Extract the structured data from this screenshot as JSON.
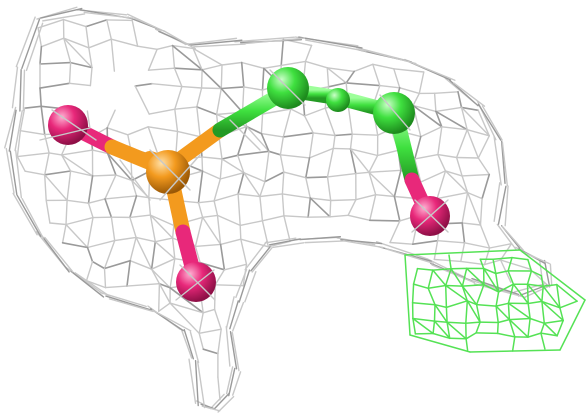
{
  "scene": {
    "background": "#ffffff",
    "colors": {
      "grey_mesh": "#c8c8c8",
      "grey_mesh_dark": "#9a9a9a",
      "green_mesh": "#55e255",
      "oxygen": "#e8287a",
      "phosphorus": "#f39a1e",
      "carbon": "#3fe03f"
    }
  }
}
